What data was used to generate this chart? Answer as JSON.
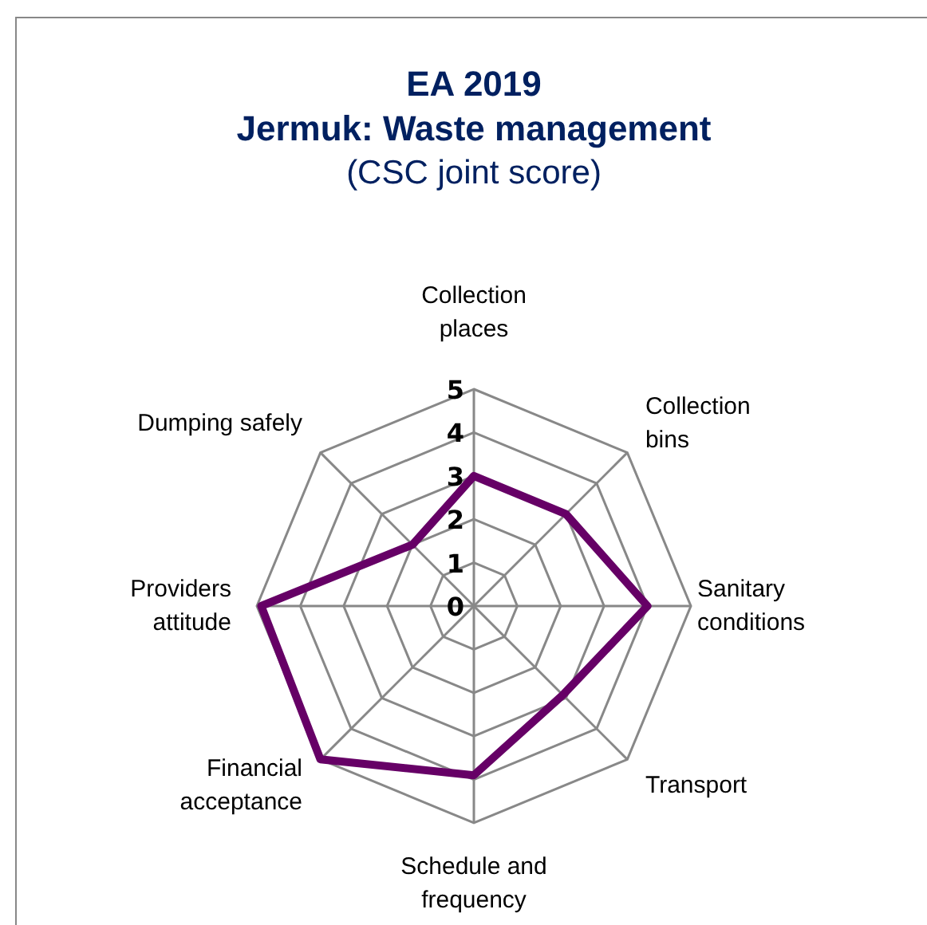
{
  "chart_data": {
    "type": "radar",
    "title": "EA 2019\nJermuk: Waste management",
    "subtitle": "(CSC joint score)",
    "categories": [
      "Collection places",
      "Collection bins",
      "Sanitary conditions",
      "Transport",
      "Schedule and frequency",
      "Financial acceptance",
      "Providers attitude",
      "Dumping safely"
    ],
    "series": [
      {
        "color": "#660066",
        "values": [
          3.0,
          3.0,
          4.0,
          2.9,
          3.9,
          5.0,
          4.9,
          2.0
        ]
      }
    ],
    "ylim": [
      0,
      5
    ],
    "yticks": [
      0,
      1,
      2,
      3,
      4,
      5
    ]
  }
}
